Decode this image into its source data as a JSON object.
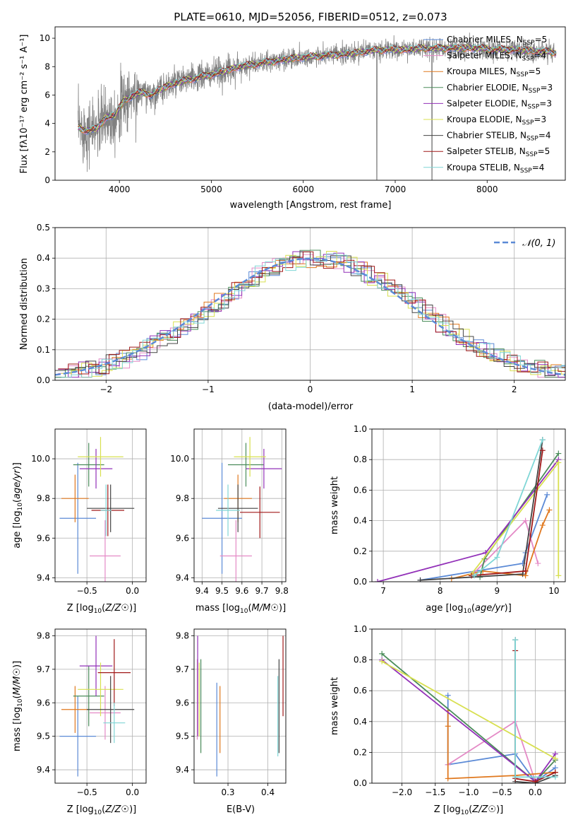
{
  "colors": {
    "Chabrier MILES": "#5b8ad6",
    "Salpeter MILES": "#e48ac6",
    "Kroupa MILES": "#e0781e",
    "Chabrier ELODIE": "#4a8c5a",
    "Salpeter ELODIE": "#9230b8",
    "Kroupa ELODIE": "#d8e050",
    "Chabrier STELIB": "#444444",
    "Salpeter STELIB": "#a01818",
    "Kroupa STELIB": "#7fd6d6",
    "data": "#808080",
    "normal": "#5b8ad6"
  },
  "title": "PLATE=0610, MJD=52056, FIBERID=0512, z=0.073",
  "spectrum_legend": [
    {
      "name": "Chabrier MILES",
      "label": "Chabrier MILES, N",
      "sub": "SSP",
      "suffix": "=5"
    },
    {
      "name": "Salpeter MILES",
      "label": "Salpeter MILES, N",
      "sub": "SSP",
      "suffix": "=4"
    },
    {
      "name": "Kroupa MILES",
      "label": "Kroupa MILES, N",
      "sub": "SSP",
      "suffix": "=5"
    },
    {
      "name": "Chabrier ELODIE",
      "label": "Chabrier ELODIE, N",
      "sub": "SSP",
      "suffix": "=3"
    },
    {
      "name": "Salpeter ELODIE",
      "label": "Salpeter ELODIE, N",
      "sub": "SSP",
      "suffix": "=3"
    },
    {
      "name": "Kroupa ELODIE",
      "label": "Kroupa ELODIE, N",
      "sub": "SSP",
      "suffix": "=3"
    },
    {
      "name": "Chabrier STELIB",
      "label": "Chabrier STELIB, N",
      "sub": "SSP",
      "suffix": "=4"
    },
    {
      "name": "Salpeter STELIB",
      "label": "Salpeter STELIB, N",
      "sub": "SSP",
      "suffix": "=5"
    },
    {
      "name": "Kroupa STELIB",
      "label": "Kroupa STELIB, N",
      "sub": "SSP",
      "suffix": "=4"
    }
  ],
  "axis_labels": {
    "spec_x": "wavelength [Angstrom, rest frame]",
    "spec_y": "Flux [f",
    "spec_y_rest": "10",
    "spec_y_exp": "−17",
    "spec_y_units": " erg cm",
    "hist_x": "(data-model)/error",
    "hist_y": "Normed distribution",
    "hist_legend": "𝒩(0, 1)",
    "age": "age  [log",
    "z": "Z [log",
    "mass": "mass [log",
    "ebv": "E(B-V)",
    "mass_weight": "mass weight"
  },
  "chart_data": [
    {
      "id": "spectrum",
      "type": "line",
      "title": "PLATE=0610, MJD=52056, FIBERID=0512, z=0.073",
      "xlabel": "wavelength [Angstrom, rest frame]",
      "ylabel": "Flux [fλ 10^-17 erg cm^-2 s^-1 A^-1]",
      "xlim": [
        3300,
        8850
      ],
      "ylim": [
        0,
        10.8
      ],
      "xticks": [
        4000,
        5000,
        6000,
        7000,
        8000
      ],
      "yticks": [
        0,
        2,
        4,
        6,
        8,
        10
      ],
      "continuum": {
        "x": [
          3550,
          3650,
          3750,
          3850,
          3950,
          4050,
          4150,
          4250,
          4350,
          4500,
          4700,
          4900,
          5100,
          5300,
          5500,
          5700,
          5900,
          6100,
          6300,
          6500,
          6700,
          6900,
          7100,
          7300,
          7500,
          7700,
          7900,
          8100,
          8300,
          8500,
          8750
        ],
        "y": [
          3.7,
          3.5,
          3.6,
          4.4,
          4.6,
          5.6,
          6.0,
          6.2,
          6.0,
          6.6,
          7.0,
          7.3,
          7.6,
          8.0,
          8.2,
          8.4,
          8.6,
          8.7,
          8.8,
          8.9,
          9.1,
          9.2,
          9.2,
          9.3,
          9.3,
          9.3,
          9.3,
          9.2,
          9.2,
          9.1,
          9.0
        ]
      }
    },
    {
      "id": "residual_histogram",
      "type": "bar",
      "xlabel": "(data-model)/error",
      "ylabel": "Normed distribution",
      "xlim": [
        -2.5,
        2.5
      ],
      "ylim": [
        0,
        0.5
      ],
      "xticks": [
        -2,
        -1,
        0,
        1,
        2
      ],
      "yticks": [
        0.0,
        0.1,
        0.2,
        0.3,
        0.4,
        0.5
      ],
      "legend": "𝒩(0, 1)"
    },
    {
      "id": "age_vs_Z",
      "type": "scatter",
      "xlabel": "Z [log10(Z/Z☉)]",
      "ylabel": "age [log10(age/yr)]",
      "xlim": [
        -0.85,
        0.15
      ],
      "ylim": [
        9.38,
        10.15
      ],
      "xticks": [
        -0.5,
        0.0
      ],
      "yticks": [
        9.4,
        9.6,
        9.8,
        10.0
      ],
      "points": [
        {
          "series": "Chabrier MILES",
          "x": -0.6,
          "y": 9.7,
          "xerr": 0.2,
          "yerr": 0.28
        },
        {
          "series": "Salpeter MILES",
          "x": -0.3,
          "y": 9.51,
          "xerr": 0.17,
          "yerr": 0.18
        },
        {
          "series": "Kroupa MILES",
          "x": -0.63,
          "y": 9.8,
          "xerr": 0.15,
          "yerr": 0.12
        },
        {
          "series": "Chabrier ELODIE",
          "x": -0.48,
          "y": 9.97,
          "xerr": 0.17,
          "yerr": 0.11
        },
        {
          "series": "Salpeter ELODIE",
          "x": -0.4,
          "y": 9.95,
          "xerr": 0.18,
          "yerr": 0.1
        },
        {
          "series": "Kroupa ELODIE",
          "x": -0.35,
          "y": 10.01,
          "xerr": 0.25,
          "yerr": 0.1
        },
        {
          "series": "Chabrier STELIB",
          "x": -0.24,
          "y": 9.75,
          "xerr": 0.26,
          "yerr": 0.12
        },
        {
          "series": "Salpeter STELIB",
          "x": -0.27,
          "y": 9.74,
          "xerr": 0.18,
          "yerr": 0.13
        },
        {
          "series": "Kroupa STELIB",
          "x": -0.29,
          "y": 9.74,
          "xerr": 0.06,
          "yerr": 0.13
        }
      ]
    },
    {
      "id": "age_vs_mass",
      "type": "scatter",
      "xlabel": "mass [log10(M/M☉)]",
      "ylabel": "",
      "xlim": [
        9.36,
        9.82
      ],
      "ylim": [
        9.38,
        10.15
      ],
      "xticks": [
        9.4,
        9.5,
        9.6,
        9.7,
        9.8
      ],
      "yticks": [
        9.4,
        9.6,
        9.8,
        10.0
      ],
      "points": [
        {
          "series": "Chabrier MILES",
          "x": 9.5,
          "y": 9.7,
          "xerr": 0.1,
          "yerr": 0.28
        },
        {
          "series": "Salpeter MILES",
          "x": 9.57,
          "y": 9.51,
          "xerr": 0.08,
          "yerr": 0.18
        },
        {
          "series": "Kroupa MILES",
          "x": 9.58,
          "y": 9.8,
          "xerr": 0.07,
          "yerr": 0.12
        },
        {
          "series": "Chabrier ELODIE",
          "x": 9.62,
          "y": 9.97,
          "xerr": 0.09,
          "yerr": 0.11
        },
        {
          "series": "Salpeter ELODIE",
          "x": 9.71,
          "y": 9.95,
          "xerr": 0.09,
          "yerr": 0.1
        },
        {
          "series": "Kroupa ELODIE",
          "x": 9.64,
          "y": 10.01,
          "xerr": 0.08,
          "yerr": 0.1
        },
        {
          "series": "Chabrier STELIB",
          "x": 9.58,
          "y": 9.75,
          "xerr": 0.1,
          "yerr": 0.12
        },
        {
          "series": "Salpeter STELIB",
          "x": 9.69,
          "y": 9.73,
          "xerr": 0.1,
          "yerr": 0.13
        },
        {
          "series": "Kroupa STELIB",
          "x": 9.53,
          "y": 9.74,
          "xerr": 0.06,
          "yerr": 0.13
        }
      ]
    },
    {
      "id": "mass_weight_vs_age",
      "type": "line",
      "xlabel": "age [log10(age/yr)]",
      "ylabel": "mass weight",
      "xlim": [
        6.8,
        10.2
      ],
      "ylim": [
        0,
        1.0
      ],
      "xticks": [
        7,
        8,
        9,
        10
      ],
      "yticks": [
        0.0,
        0.2,
        0.4,
        0.6,
        0.8,
        1.0
      ],
      "series": [
        {
          "name": "Chabrier MILES",
          "x": [
            7.65,
            9.45,
            9.5,
            9.88
          ],
          "y": [
            0.01,
            0.12,
            0.19,
            0.57
          ]
        },
        {
          "name": "Salpeter MILES",
          "x": [
            8.55,
            9.5,
            9.72
          ],
          "y": [
            0.04,
            0.4,
            0.12
          ]
        },
        {
          "name": "Kroupa MILES",
          "x": [
            8.2,
            8.75,
            9.5,
            9.8,
            9.92
          ],
          "y": [
            0.02,
            0.07,
            0.04,
            0.37,
            0.47
          ]
        },
        {
          "name": "Chabrier ELODIE",
          "x": [
            8.7,
            8.78,
            10.08
          ],
          "y": [
            0.03,
            0.15,
            0.84
          ]
        },
        {
          "name": "Salpeter ELODIE",
          "x": [
            6.9,
            8.8,
            10.08
          ],
          "y": [
            0.0,
            0.19,
            0.8
          ]
        },
        {
          "name": "Kroupa ELODIE",
          "x": [
            8.55,
            10.08,
            10.08
          ],
          "y": [
            0.05,
            0.78,
            0.04
          ]
        },
        {
          "name": "Chabrier STELIB",
          "x": [
            7.65,
            9.45,
            9.8
          ],
          "y": [
            0.01,
            0.05,
            0.93
          ]
        },
        {
          "name": "Salpeter STELIB",
          "x": [
            8.55,
            9.5,
            9.8
          ],
          "y": [
            0.04,
            0.07,
            0.86
          ]
        },
        {
          "name": "Kroupa STELIB",
          "x": [
            8.6,
            9.0,
            9.8
          ],
          "y": [
            0.04,
            0.16,
            0.93
          ]
        }
      ]
    },
    {
      "id": "mass_vs_Z",
      "type": "scatter",
      "xlabel": "Z [log10(Z/Z☉)]",
      "ylabel": "mass [log10(M/M☉)]",
      "xlim": [
        -0.85,
        0.15
      ],
      "ylim": [
        9.36,
        9.82
      ],
      "xticks": [
        -0.5,
        0.0
      ],
      "yticks": [
        9.4,
        9.5,
        9.6,
        9.7,
        9.8
      ],
      "points": [
        {
          "series": "Chabrier MILES",
          "x": -0.6,
          "y": 9.5,
          "xerr": 0.2,
          "yerr": 0.12
        },
        {
          "series": "Salpeter MILES",
          "x": -0.3,
          "y": 9.57,
          "xerr": 0.17,
          "yerr": 0.08
        },
        {
          "series": "Kroupa MILES",
          "x": -0.63,
          "y": 9.58,
          "xerr": 0.15,
          "yerr": 0.07
        },
        {
          "series": "Chabrier ELODIE",
          "x": -0.48,
          "y": 9.62,
          "xerr": 0.17,
          "yerr": 0.09
        },
        {
          "series": "Salpeter ELODIE",
          "x": -0.4,
          "y": 9.71,
          "xerr": 0.18,
          "yerr": 0.09
        },
        {
          "series": "Kroupa ELODIE",
          "x": -0.35,
          "y": 9.64,
          "xerr": 0.25,
          "yerr": 0.08
        },
        {
          "series": "Chabrier STELIB",
          "x": -0.24,
          "y": 9.58,
          "xerr": 0.26,
          "yerr": 0.1
        },
        {
          "series": "Salpeter STELIB",
          "x": -0.2,
          "y": 9.69,
          "xerr": 0.18,
          "yerr": 0.1
        },
        {
          "series": "Kroupa STELIB",
          "x": -0.2,
          "y": 9.54,
          "xerr": 0.12,
          "yerr": 0.06
        }
      ]
    },
    {
      "id": "mass_vs_ebv",
      "type": "scatter",
      "xlabel": "E(B-V)",
      "ylabel": "",
      "xlim": [
        0.215,
        0.445
      ],
      "ylim": [
        9.36,
        9.82
      ],
      "xticks": [
        0.3,
        0.4
      ],
      "yticks": [
        9.4,
        9.5,
        9.6,
        9.7,
        9.8
      ],
      "points": [
        {
          "series": "Chabrier MILES",
          "x": 0.272,
          "y": 9.52,
          "xerr": 0.0,
          "yerr": 0.14
        },
        {
          "series": "Salpeter MILES",
          "x": 0.223,
          "y": 9.61,
          "xerr": 0.0,
          "yerr": 0.12
        },
        {
          "series": "Kroupa MILES",
          "x": 0.28,
          "y": 9.55,
          "xerr": 0.0,
          "yerr": 0.1
        },
        {
          "series": "Chabrier ELODIE",
          "x": 0.232,
          "y": 9.59,
          "xerr": 0.0,
          "yerr": 0.14
        },
        {
          "series": "Salpeter ELODIE",
          "x": 0.224,
          "y": 9.65,
          "xerr": 0.0,
          "yerr": 0.15
        },
        {
          "series": "Kroupa ELODIE",
          "x": 0.228,
          "y": 9.61,
          "xerr": 0.0,
          "yerr": 0.11
        },
        {
          "series": "Chabrier STELIB",
          "x": 0.428,
          "y": 9.59,
          "xerr": 0.0,
          "yerr": 0.14
        },
        {
          "series": "Salpeter STELIB",
          "x": 0.438,
          "y": 9.68,
          "xerr": 0.0,
          "yerr": 0.12
        },
        {
          "series": "Kroupa STELIB",
          "x": 0.425,
          "y": 9.56,
          "xerr": 0.0,
          "yerr": 0.12
        }
      ]
    },
    {
      "id": "mass_weight_vs_Z",
      "type": "line",
      "xlabel": "Z [log10(Z/Z☉)]",
      "ylabel": "mass weight",
      "xlim": [
        -2.45,
        0.45
      ],
      "ylim": [
        0,
        1.0
      ],
      "xticks": [
        -2.0,
        -1.5,
        -1.0,
        -0.5,
        0.0
      ],
      "yticks": [
        0.0,
        0.2,
        0.4,
        0.6,
        0.8,
        1.0
      ],
      "series": [
        {
          "name": "Chabrier MILES",
          "x": [
            -1.31,
            -1.31,
            -0.3,
            0.0,
            0.3
          ],
          "y": [
            0.57,
            0.12,
            0.19,
            0.01,
            0.1
          ]
        },
        {
          "name": "Salpeter MILES",
          "x": [
            -1.31,
            -0.3,
            0.0,
            0.3
          ],
          "y": [
            0.12,
            0.4,
            0.01,
            0.15
          ]
        },
        {
          "name": "Kroupa MILES",
          "x": [
            -1.31,
            -1.31,
            -1.31,
            -0.3,
            0.3
          ],
          "y": [
            0.37,
            0.47,
            0.03,
            0.05,
            0.07
          ]
        },
        {
          "name": "Chabrier ELODIE",
          "x": [
            -2.3,
            0.0,
            0.3
          ],
          "y": [
            0.84,
            0.01,
            0.15
          ]
        },
        {
          "name": "Salpeter ELODIE",
          "x": [
            -2.3,
            0.0,
            0.3
          ],
          "y": [
            0.8,
            0.01,
            0.19
          ]
        },
        {
          "name": "Kroupa ELODIE",
          "x": [
            -2.3,
            0.3
          ],
          "y": [
            0.79,
            0.16
          ]
        },
        {
          "name": "Chabrier STELIB",
          "x": [
            -0.3,
            -0.3,
            0.0,
            0.3
          ],
          "y": [
            0.93,
            0.01,
            0.0,
            0.05
          ]
        },
        {
          "name": "Salpeter STELIB",
          "x": [
            -0.3,
            -0.3,
            0.0,
            0.3
          ],
          "y": [
            0.86,
            0.03,
            0.01,
            0.07
          ]
        },
        {
          "name": "Kroupa STELIB",
          "x": [
            -0.3,
            -0.3,
            0.3
          ],
          "y": [
            0.93,
            0.04,
            0.04
          ]
        }
      ]
    }
  ]
}
